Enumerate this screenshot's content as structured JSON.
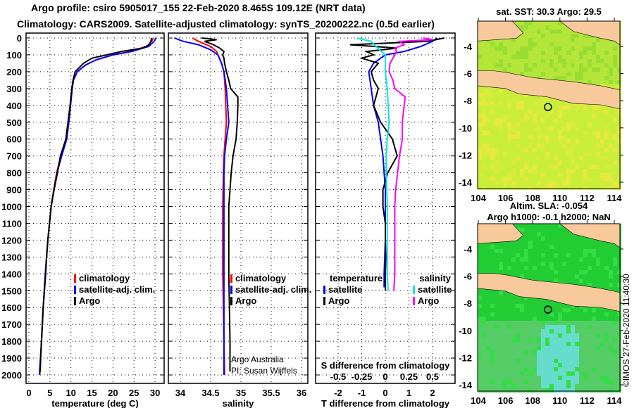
{
  "title_line1": "Argo profile: csiro 5905017_155 22-Feb-2020 8.465S 109.12E (NRT data)",
  "title_line2": "Climatology: CARS2009. Satellite-adjusted climatology: synTS_20200222.nc (0.5d earlier)",
  "credit_line1": "Argo Australia",
  "credit_line2": "PI: Susan Wijffels",
  "timestamp": "©IMOS 27-Feb-2020 11:40:30",
  "colors": {
    "argo": "#000000",
    "climatology": "#ff0000",
    "satellite": "#0000ff",
    "sal_sat": "#00e5e5",
    "sal_argo": "#ff00ff",
    "land": "#f7c99b",
    "sst": "#c8ee3a",
    "sla": "#22cc22"
  },
  "chart_data": [
    {
      "type": "line",
      "id": "temperature",
      "xlabel": "temperature (deg C)",
      "ylabel": "",
      "xlim": [
        0,
        30.5
      ],
      "ylim": [
        2050,
        0
      ],
      "xticks": [
        0,
        5,
        10,
        15,
        20,
        25,
        30
      ],
      "yticks": [
        0,
        100,
        200,
        300,
        400,
        500,
        600,
        700,
        800,
        900,
        1000,
        1100,
        1200,
        1300,
        1400,
        1500,
        1600,
        1700,
        1800,
        1900,
        2000
      ],
      "legend": [
        "climatology",
        "satellite-adj. clim.",
        "Argo"
      ],
      "legend_placement": "bottom-right",
      "series": [
        {
          "name": "climatology",
          "color": "#ff0000",
          "depth": [
            0,
            20,
            50,
            80,
            100,
            130,
            160,
            200,
            250,
            300,
            400,
            500,
            600,
            700,
            800,
            900,
            1000,
            1200,
            1400,
            1600,
            1800,
            2000
          ],
          "values": [
            29.6,
            29.2,
            28,
            24,
            20,
            16,
            13.5,
            11.5,
            10.6,
            10.3,
            9.9,
            9.5,
            9,
            7.6,
            6.6,
            5.9,
            5.3,
            4.5,
            3.9,
            3.4,
            3,
            2.6
          ]
        },
        {
          "name": "satellite-adj. clim.",
          "color": "#0000ff",
          "depth": [
            0,
            20,
            50,
            80,
            100,
            130,
            160,
            200,
            250,
            300,
            400,
            500,
            600,
            700,
            800,
            900,
            1000,
            1200,
            1400,
            1600,
            1800,
            2000
          ],
          "values": [
            30.2,
            29.8,
            28.5,
            24.5,
            20,
            16,
            13.5,
            11.5,
            10.6,
            10.3,
            9.9,
            9.5,
            9,
            7.8,
            6.7,
            6,
            5.3,
            4.5,
            3.9,
            3.4,
            3,
            2.5
          ]
        },
        {
          "name": "Argo",
          "color": "#000000",
          "depth": [
            0,
            20,
            40,
            60,
            80,
            100,
            120,
            150,
            200,
            250,
            300,
            400,
            500,
            600,
            700,
            800,
            900,
            1000,
            1100,
            1200,
            1300,
            1400,
            1500,
            1600,
            1700,
            1800,
            1900,
            1980
          ],
          "values": [
            29.2,
            29,
            28.6,
            27,
            22,
            18.5,
            15,
            13,
            11,
            10.5,
            10.2,
            9.8,
            9.3,
            8.8,
            7.5,
            6.8,
            6,
            5.3,
            4.9,
            4.5,
            4.2,
            4,
            3.7,
            3.4,
            3.2,
            3,
            2.8,
            2.7
          ]
        }
      ]
    },
    {
      "type": "line",
      "id": "salinity",
      "xlabel": "salinity",
      "xlim": [
        33.8,
        36.1
      ],
      "ylim": [
        2050,
        0
      ],
      "xticks": [
        34,
        34.5,
        35,
        35.5,
        36
      ],
      "legend": [
        "climatology",
        "satellite-adj. clim.",
        "Argo"
      ],
      "legend_placement": "bottom-right",
      "series": [
        {
          "name": "climatology",
          "color": "#ff0000",
          "depth": [
            0,
            20,
            50,
            80,
            100,
            150,
            200,
            300,
            400,
            500,
            600,
            700,
            800,
            1000,
            1200,
            1400,
            1600,
            1800,
            2000
          ],
          "values": [
            34.2,
            34.3,
            34.5,
            34.6,
            34.62,
            34.68,
            34.72,
            34.74,
            34.75,
            34.76,
            34.74,
            34.72,
            34.71,
            34.7,
            34.7,
            34.7,
            34.71,
            34.72,
            34.73
          ]
        },
        {
          "name": "satellite-adj. clim.",
          "color": "#0000ff",
          "depth": [
            0,
            20,
            40,
            70,
            100,
            150,
            200,
            300,
            400,
            500,
            600,
            700,
            800,
            1000,
            1200,
            1400,
            1600,
            1800,
            2000
          ],
          "values": [
            33.9,
            34.05,
            34.3,
            34.5,
            34.62,
            34.68,
            34.72,
            34.76,
            34.78,
            34.8,
            34.76,
            34.73,
            34.72,
            34.72,
            34.72,
            34.72,
            34.72,
            34.72,
            34.72
          ]
        },
        {
          "name": "Argo",
          "color": "#000000",
          "depth": [
            0,
            10,
            20,
            40,
            60,
            80,
            100,
            120,
            150,
            200,
            250,
            300,
            350,
            400,
            500,
            600,
            700,
            800,
            900,
            1000,
            1200,
            1400,
            1600,
            1800,
            1980
          ],
          "values": [
            34.35,
            34.6,
            34.4,
            34.55,
            34.65,
            34.72,
            34.7,
            34.72,
            34.73,
            34.76,
            34.8,
            34.83,
            34.95,
            34.95,
            34.94,
            34.92,
            34.87,
            34.84,
            34.82,
            34.8,
            34.8,
            34.8,
            34.81,
            34.82,
            34.82
          ]
        }
      ]
    },
    {
      "type": "line",
      "id": "difference",
      "xlabel": "T difference from climatology",
      "xlabel2": "S difference from climatology",
      "xlim": [
        -3,
        3
      ],
      "xlim_s": [
        -1,
        1
      ],
      "ylim": [
        2050,
        0
      ],
      "xticks": [
        -2,
        -1,
        0,
        1,
        2
      ],
      "xticks_s": [
        -0.5,
        -0.25,
        0,
        0.25,
        0.5
      ],
      "legend_t_title": "temperature",
      "legend_s_title": "salinity",
      "legend": [
        "satellite",
        "Argo",
        "satellite",
        "Argo"
      ],
      "series": [
        {
          "name": "T satellite",
          "color": "#0000ff",
          "axis": "T",
          "depth": [
            0,
            20,
            50,
            80,
            100,
            150,
            200,
            300,
            400,
            500,
            600,
            700,
            800,
            900,
            1000,
            1200,
            1400,
            1480
          ],
          "values": [
            2.2,
            2,
            1.5,
            0.8,
            0,
            -0.5,
            -0.7,
            -0.6,
            -0.5,
            -0.3,
            -0.2,
            -0.1,
            -0.05,
            0,
            0,
            0,
            -0.05,
            -0.05
          ]
        },
        {
          "name": "T Argo",
          "color": "#000000",
          "axis": "T",
          "depth": [
            0,
            20,
            40,
            60,
            80,
            100,
            120,
            150,
            200,
            250,
            300,
            400,
            500,
            600,
            700,
            800,
            900,
            1000,
            1100,
            1200,
            1300,
            1400,
            1500
          ],
          "values": [
            2.5,
            1.8,
            -1.5,
            0.5,
            -0.8,
            -0.5,
            -1,
            -0.3,
            -0.6,
            -0.5,
            -0.3,
            -0.5,
            -0.2,
            0.3,
            0.5,
            0.1,
            -0.1,
            -0.1,
            0,
            0,
            0.02,
            0,
            0
          ]
        },
        {
          "name": "S satellite",
          "color": "#00e5e5",
          "axis": "S",
          "depth": [
            0,
            20,
            50,
            100,
            150,
            200,
            300,
            400,
            500,
            600,
            700,
            800,
            1000,
            1200,
            1400,
            1500
          ],
          "values": [
            -0.3,
            -0.15,
            -0.1,
            0,
            0,
            0,
            0.02,
            0.03,
            0.04,
            0.02,
            0.01,
            0.01,
            0.02,
            0.02,
            0.02,
            0.03
          ]
        },
        {
          "name": "S Argo",
          "color": "#ff00ff",
          "axis": "S",
          "depth": [
            0,
            10,
            20,
            40,
            60,
            80,
            100,
            150,
            200,
            250,
            300,
            350,
            400,
            500,
            600,
            700,
            800,
            900,
            1000,
            1200,
            1400,
            1500
          ],
          "values": [
            0.4,
            0.5,
            0.15,
            0.2,
            0.1,
            0.12,
            0.1,
            0.05,
            0.04,
            0.08,
            0.1,
            0.21,
            0.2,
            0.18,
            0.18,
            0.15,
            0.13,
            0.11,
            0.1,
            0.1,
            0.1,
            0.09
          ]
        }
      ]
    },
    {
      "type": "heatmap",
      "id": "sst-map",
      "title": "sat. SST: 30.3 Argo: 29.5",
      "xlim": [
        104,
        114.5
      ],
      "ylim": [
        -14.5,
        -2.5
      ],
      "xticks": [
        104,
        106,
        108,
        110,
        112,
        114
      ],
      "yticks": [
        -4,
        -6,
        -8,
        -10,
        -12,
        -14
      ],
      "argo_position": [
        109.12,
        -8.465
      ]
    },
    {
      "type": "heatmap",
      "id": "sla-map",
      "title": "Altim. SLA: -0.054",
      "subtitle": "Argo h1000: -0.1 h2000: NaN",
      "xlim": [
        104,
        114.5
      ],
      "ylim": [
        -14.5,
        -2.5
      ],
      "xticks": [
        104,
        106,
        108,
        110,
        112,
        114
      ],
      "yticks": [
        -4,
        -6,
        -8,
        -10,
        -12,
        -14
      ],
      "argo_position": [
        109.12,
        -8.465
      ]
    }
  ]
}
